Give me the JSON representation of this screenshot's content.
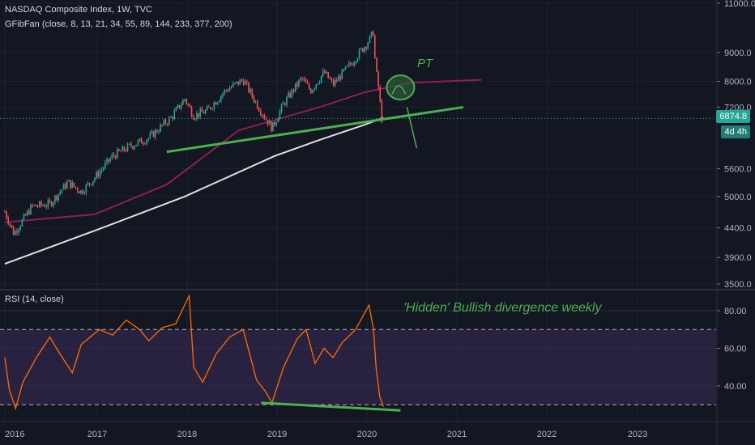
{
  "header": {
    "title": "NASDAQ Composite Index, 1W, TVC",
    "indicator": "GFibFan (close, 8, 13, 21, 34, 55, 89, 144, 233, 377, 200)",
    "rsi_label": "RSI (14, close)"
  },
  "annotations": {
    "pt": "PT",
    "divergence": "'Hidden' Bullish divergence weekly"
  },
  "last_price": {
    "value": "6874.8",
    "countdown": "4d 4h"
  },
  "colors": {
    "background": "#131722",
    "up": "#26a69a",
    "down": "#ef5350",
    "ma_long": "#e0e0e0",
    "ma_mid": "#8e1e5a",
    "trend": "#4caf50",
    "rsi_line": "#ff6d00",
    "rsi_band": "#3b2a5a",
    "price_line": "#26a69a"
  },
  "chart_data": [
    {
      "type": "candlestick",
      "title": "NASDAQ Composite Index, 1W, TVC",
      "scale": "log",
      "x_ticks": [
        "2016",
        "2017",
        "2018",
        "2019",
        "2020",
        "2021",
        "2022",
        "2023"
      ],
      "y_ticks": [
        "11000.0",
        "9000.0",
        "8000.0",
        "7200.0",
        "5600.0",
        "5000.0",
        "4400.0",
        "3900.0",
        "3500.0"
      ],
      "ylim": [
        3500,
        11000
      ],
      "xlim": [
        2016.0,
        2024.0
      ],
      "close_path": [
        [
          "2016.00",
          4700
        ],
        [
          "2016.10",
          4300
        ],
        [
          "2016.30",
          4800
        ],
        [
          "2016.50",
          4850
        ],
        [
          "2016.70",
          5300
        ],
        [
          "2016.85",
          5100
        ],
        [
          "2017.00",
          5400
        ],
        [
          "2017.20",
          5900
        ],
        [
          "2017.40",
          6150
        ],
        [
          "2017.60",
          6350
        ],
        [
          "2017.85",
          6900
        ],
        [
          "2018.00",
          7450
        ],
        [
          "2018.10",
          6950
        ],
        [
          "2018.25",
          7100
        ],
        [
          "2018.45",
          7700
        ],
        [
          "2018.65",
          8050
        ],
        [
          "2018.80",
          7300
        ],
        [
          "2018.97",
          6600
        ],
        [
          "2019.10",
          7300
        ],
        [
          "2019.30",
          8100
        ],
        [
          "2019.40",
          7700
        ],
        [
          "2019.55",
          8300
        ],
        [
          "2019.65",
          7900
        ],
        [
          "2019.85",
          8600
        ],
        [
          "2020.05",
          9450
        ],
        [
          "2020.10",
          9800
        ],
        [
          "2020.12",
          8500
        ],
        [
          "2020.16",
          7700
        ],
        [
          "2020.19",
          6860
        ],
        [
          "2020.21",
          6875
        ]
      ],
      "ma_long": [
        [
          "2016.00",
          3800
        ],
        [
          "2017.00",
          4350
        ],
        [
          "2018.00",
          5000
        ],
        [
          "2019.00",
          5900
        ],
        [
          "2019.50",
          6300
        ],
        [
          "2020.00",
          6700
        ],
        [
          "2020.21",
          6900
        ]
      ],
      "ma_mid": [
        [
          "2016.00",
          4500
        ],
        [
          "2017.00",
          4650
        ],
        [
          "2017.80",
          5250
        ],
        [
          "2018.60",
          6550
        ],
        [
          "2019.50",
          7200
        ],
        [
          "2020.00",
          7650
        ],
        [
          "2020.50",
          7950
        ],
        [
          "2021.30",
          8050
        ]
      ],
      "trendline": [
        [
          "2017.80",
          6000
        ],
        [
          "2021.10",
          7200
        ]
      ],
      "target_zone": {
        "x": "2020.40",
        "y": 7800
      }
    },
    {
      "type": "line",
      "title": "RSI (14, close)",
      "y_ticks": [
        "80.00",
        "60.00",
        "40.00"
      ],
      "ylim": [
        20,
        90
      ],
      "bands": [
        70,
        30
      ],
      "series": [
        {
          "name": "RSI (14, close)",
          "points": [
            [
              "2016.00",
              55
            ],
            [
              "2016.05",
              38
            ],
            [
              "2016.12",
              28
            ],
            [
              "2016.20",
              42
            ],
            [
              "2016.35",
              55
            ],
            [
              "2016.50",
              66
            ],
            [
              "2016.60",
              58
            ],
            [
              "2016.75",
              47
            ],
            [
              "2016.85",
              62
            ],
            [
              "2017.05",
              70
            ],
            [
              "2017.20",
              67
            ],
            [
              "2017.35",
              75
            ],
            [
              "2017.50",
              70
            ],
            [
              "2017.60",
              64
            ],
            [
              "2017.75",
              71
            ],
            [
              "2017.90",
              73
            ],
            [
              "2018.05",
              88
            ],
            [
              "2018.10",
              50
            ],
            [
              "2018.20",
              42
            ],
            [
              "2018.35",
              57
            ],
            [
              "2018.50",
              66
            ],
            [
              "2018.65",
              70
            ],
            [
              "2018.80",
              43
            ],
            [
              "2018.90",
              37
            ],
            [
              "2018.97",
              31
            ],
            [
              "2019.10",
              50
            ],
            [
              "2019.25",
              65
            ],
            [
              "2019.35",
              70
            ],
            [
              "2019.45",
              52
            ],
            [
              "2019.55",
              60
            ],
            [
              "2019.65",
              55
            ],
            [
              "2019.75",
              63
            ],
            [
              "2019.90",
              70
            ],
            [
              "2020.05",
              83
            ],
            [
              "2020.10",
              70
            ],
            [
              "2020.13",
              49
            ],
            [
              "2020.17",
              34
            ],
            [
              "2020.21",
              29
            ]
          ]
        }
      ],
      "trendline": [
        [
          "2018.85",
          31
        ],
        [
          "2020.40",
          27
        ]
      ]
    }
  ]
}
